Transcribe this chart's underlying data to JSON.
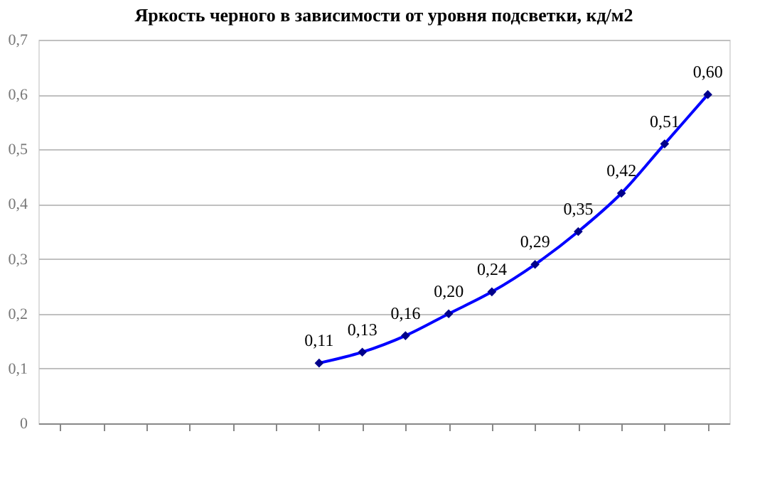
{
  "chart_data": {
    "type": "line",
    "title": "Яркость черного в зависимости от уровня подсветки, кд/м2",
    "categories": [
      null,
      null,
      null,
      null,
      null,
      null,
      null,
      null,
      null,
      null,
      null,
      null,
      null,
      null,
      null,
      null
    ],
    "series": [
      {
        "color": "#0000ff",
        "values": [
          null,
          null,
          null,
          null,
          null,
          null,
          0.11,
          0.13,
          0.16,
          0.2,
          0.24,
          0.29,
          0.35,
          0.42,
          0.51,
          0.6
        ],
        "value_labels": [
          null,
          null,
          null,
          null,
          null,
          null,
          "0,11",
          "0,13",
          "0,16",
          "0,20",
          "0,24",
          "0,29",
          "0,35",
          "0,42",
          "0,51",
          "0,60"
        ]
      }
    ],
    "ylim": [
      0,
      0.7
    ],
    "yticks": [
      0,
      {
        "value": 0.1,
        "label": "0,1"
      },
      {
        "value": 0.2,
        "label": "0,2"
      },
      {
        "value": 0.3,
        "label": "0,3"
      },
      {
        "value": 0.4,
        "label": "0,4"
      },
      {
        "value": 0.5,
        "label": "0,5"
      },
      {
        "value": 0.6,
        "label": "0,6"
      },
      {
        "value": 0.7,
        "label": "0,7"
      }
    ],
    "tick_labels": "y",
    "grid": "y",
    "marker": "diamond",
    "line_style": "solid"
  }
}
